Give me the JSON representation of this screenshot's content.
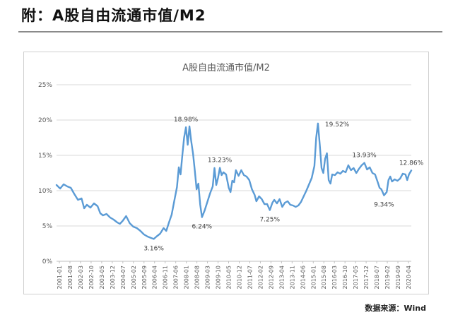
{
  "header": {
    "title": "附：A股自由流通市值/M2"
  },
  "source": {
    "text": "数据来源：Wind"
  },
  "chart_data": {
    "type": "line",
    "title": "A股自由流通市值/M2",
    "xlabel": "",
    "ylabel": "",
    "ylim": [
      0,
      25
    ],
    "y_ticks": [
      "0%",
      "5%",
      "10%",
      "15%",
      "20%",
      "25%"
    ],
    "grid": true,
    "legend": "none",
    "line_color": "#5b9bd5",
    "x_tick_labels": [
      "2001-01",
      "2001-08",
      "2002-03",
      "2002-10",
      "2003-05",
      "2003-12",
      "2004-07",
      "2005-02",
      "2005-09",
      "2006-04",
      "2006-11",
      "2007-06",
      "2008-01",
      "2008-08",
      "2009-03",
      "2009-10",
      "2010-05",
      "2010-12",
      "2011-07",
      "2012-02",
      "2012-09",
      "2013-04",
      "2013-11",
      "2014-06",
      "2015-01",
      "2015-08",
      "2016-03",
      "2016-10",
      "2017-05",
      "2017-12",
      "2018-07",
      "2019-02",
      "2019-09",
      "2020-04"
    ],
    "series": [
      {
        "values": [
          [
            2001.0,
            10.8
          ],
          [
            2001.2,
            10.3
          ],
          [
            2001.4,
            10.9
          ],
          [
            2001.6,
            10.6
          ],
          [
            2001.8,
            10.4
          ],
          [
            2002.0,
            9.5
          ],
          [
            2002.2,
            8.7
          ],
          [
            2002.4,
            8.9
          ],
          [
            2002.55,
            7.5
          ],
          [
            2002.7,
            8.0
          ],
          [
            2002.9,
            7.6
          ],
          [
            2003.1,
            8.2
          ],
          [
            2003.3,
            7.8
          ],
          [
            2003.45,
            6.8
          ],
          [
            2003.6,
            6.5
          ],
          [
            2003.8,
            6.7
          ],
          [
            2004.0,
            6.2
          ],
          [
            2004.2,
            5.9
          ],
          [
            2004.4,
            5.5
          ],
          [
            2004.55,
            5.3
          ],
          [
            2004.7,
            5.7
          ],
          [
            2004.9,
            6.4
          ],
          [
            2005.1,
            5.4
          ],
          [
            2005.3,
            4.9
          ],
          [
            2005.5,
            4.7
          ],
          [
            2005.7,
            4.3
          ],
          [
            2005.9,
            3.8
          ],
          [
            2006.1,
            3.5
          ],
          [
            2006.3,
            3.3
          ],
          [
            2006.45,
            3.16
          ],
          [
            2006.6,
            3.5
          ],
          [
            2006.8,
            3.9
          ],
          [
            2007.0,
            4.7
          ],
          [
            2007.15,
            4.3
          ],
          [
            2007.3,
            5.5
          ],
          [
            2007.45,
            6.6
          ],
          [
            2007.6,
            8.6
          ],
          [
            2007.75,
            10.5
          ],
          [
            2007.85,
            13.3
          ],
          [
            2007.95,
            12.3
          ],
          [
            2008.05,
            15.0
          ],
          [
            2008.15,
            17.5
          ],
          [
            2008.25,
            18.98
          ],
          [
            2008.35,
            16.5
          ],
          [
            2008.45,
            19.1
          ],
          [
            2008.55,
            17.0
          ],
          [
            2008.65,
            15.2
          ],
          [
            2008.75,
            12.8
          ],
          [
            2008.85,
            10.2
          ],
          [
            2008.95,
            11.0
          ],
          [
            2009.05,
            8.0
          ],
          [
            2009.15,
            6.24
          ],
          [
            2009.3,
            7.2
          ],
          [
            2009.45,
            8.4
          ],
          [
            2009.6,
            9.6
          ],
          [
            2009.75,
            10.6
          ],
          [
            2009.85,
            13.2
          ],
          [
            2009.95,
            10.8
          ],
          [
            2010.05,
            11.8
          ],
          [
            2010.15,
            13.23
          ],
          [
            2010.25,
            12.2
          ],
          [
            2010.35,
            12.6
          ],
          [
            2010.5,
            12.3
          ],
          [
            2010.65,
            10.4
          ],
          [
            2010.75,
            9.8
          ],
          [
            2010.85,
            11.4
          ],
          [
            2010.95,
            11.2
          ],
          [
            2011.05,
            12.9
          ],
          [
            2011.2,
            12.1
          ],
          [
            2011.35,
            12.9
          ],
          [
            2011.5,
            12.2
          ],
          [
            2011.65,
            12.0
          ],
          [
            2011.8,
            11.5
          ],
          [
            2011.95,
            10.2
          ],
          [
            2012.1,
            9.4
          ],
          [
            2012.2,
            8.5
          ],
          [
            2012.35,
            9.2
          ],
          [
            2012.5,
            8.8
          ],
          [
            2012.65,
            8.1
          ],
          [
            2012.8,
            8.1
          ],
          [
            2012.95,
            7.25
          ],
          [
            2013.1,
            8.3
          ],
          [
            2013.2,
            8.7
          ],
          [
            2013.35,
            8.2
          ],
          [
            2013.5,
            8.8
          ],
          [
            2013.65,
            7.7
          ],
          [
            2013.8,
            8.3
          ],
          [
            2013.95,
            8.5
          ],
          [
            2014.1,
            8.0
          ],
          [
            2014.25,
            7.9
          ],
          [
            2014.4,
            7.7
          ],
          [
            2014.55,
            7.9
          ],
          [
            2014.7,
            8.4
          ],
          [
            2014.85,
            9.2
          ],
          [
            2015.0,
            10.0
          ],
          [
            2015.15,
            10.9
          ],
          [
            2015.3,
            11.8
          ],
          [
            2015.45,
            13.5
          ],
          [
            2015.55,
            17.5
          ],
          [
            2015.65,
            19.52
          ],
          [
            2015.75,
            16.5
          ],
          [
            2015.85,
            13.2
          ],
          [
            2015.95,
            12.5
          ],
          [
            2016.05,
            14.5
          ],
          [
            2016.15,
            15.3
          ],
          [
            2016.25,
            11.5
          ],
          [
            2016.35,
            11.0
          ],
          [
            2016.45,
            12.3
          ],
          [
            2016.6,
            12.2
          ],
          [
            2016.75,
            12.6
          ],
          [
            2016.9,
            12.4
          ],
          [
            2017.05,
            12.8
          ],
          [
            2017.2,
            12.6
          ],
          [
            2017.35,
            13.6
          ],
          [
            2017.5,
            12.9
          ],
          [
            2017.65,
            13.2
          ],
          [
            2017.8,
            12.5
          ],
          [
            2017.95,
            13.1
          ],
          [
            2018.1,
            13.6
          ],
          [
            2018.25,
            13.93
          ],
          [
            2018.4,
            13.0
          ],
          [
            2018.55,
            13.3
          ],
          [
            2018.7,
            12.5
          ],
          [
            2018.85,
            12.3
          ],
          [
            2019.0,
            11.2
          ],
          [
            2019.1,
            10.4
          ],
          [
            2019.2,
            10.2
          ],
          [
            2019.35,
            9.34
          ],
          [
            2019.5,
            9.8
          ],
          [
            2019.6,
            11.5
          ],
          [
            2019.7,
            12.0
          ],
          [
            2019.8,
            11.3
          ],
          [
            2019.95,
            11.6
          ],
          [
            2020.1,
            11.4
          ],
          [
            2020.25,
            11.7
          ],
          [
            2020.4,
            12.4
          ],
          [
            2020.55,
            12.3
          ],
          [
            2020.65,
            11.5
          ],
          [
            2020.75,
            12.3
          ],
          [
            2020.88,
            12.86
          ]
        ]
      }
    ],
    "annotations": [
      {
        "text": "3.16%",
        "x": 2006.45,
        "y": 3.16,
        "pos": "below"
      },
      {
        "text": "18.98%",
        "x": 2008.25,
        "y": 18.98,
        "pos": "above"
      },
      {
        "text": "6.24%",
        "x": 2009.15,
        "y": 6.24,
        "pos": "below"
      },
      {
        "text": "13.23%",
        "x": 2010.15,
        "y": 13.23,
        "pos": "above"
      },
      {
        "text": "7.25%",
        "x": 2012.95,
        "y": 7.25,
        "pos": "below"
      },
      {
        "text": "19.52%",
        "x": 2015.65,
        "y": 19.52,
        "pos": "right"
      },
      {
        "text": "13.93%",
        "x": 2018.25,
        "y": 13.93,
        "pos": "above"
      },
      {
        "text": "9.34%",
        "x": 2019.35,
        "y": 9.34,
        "pos": "below"
      },
      {
        "text": "12.86%",
        "x": 2020.88,
        "y": 12.86,
        "pos": "above"
      }
    ]
  }
}
